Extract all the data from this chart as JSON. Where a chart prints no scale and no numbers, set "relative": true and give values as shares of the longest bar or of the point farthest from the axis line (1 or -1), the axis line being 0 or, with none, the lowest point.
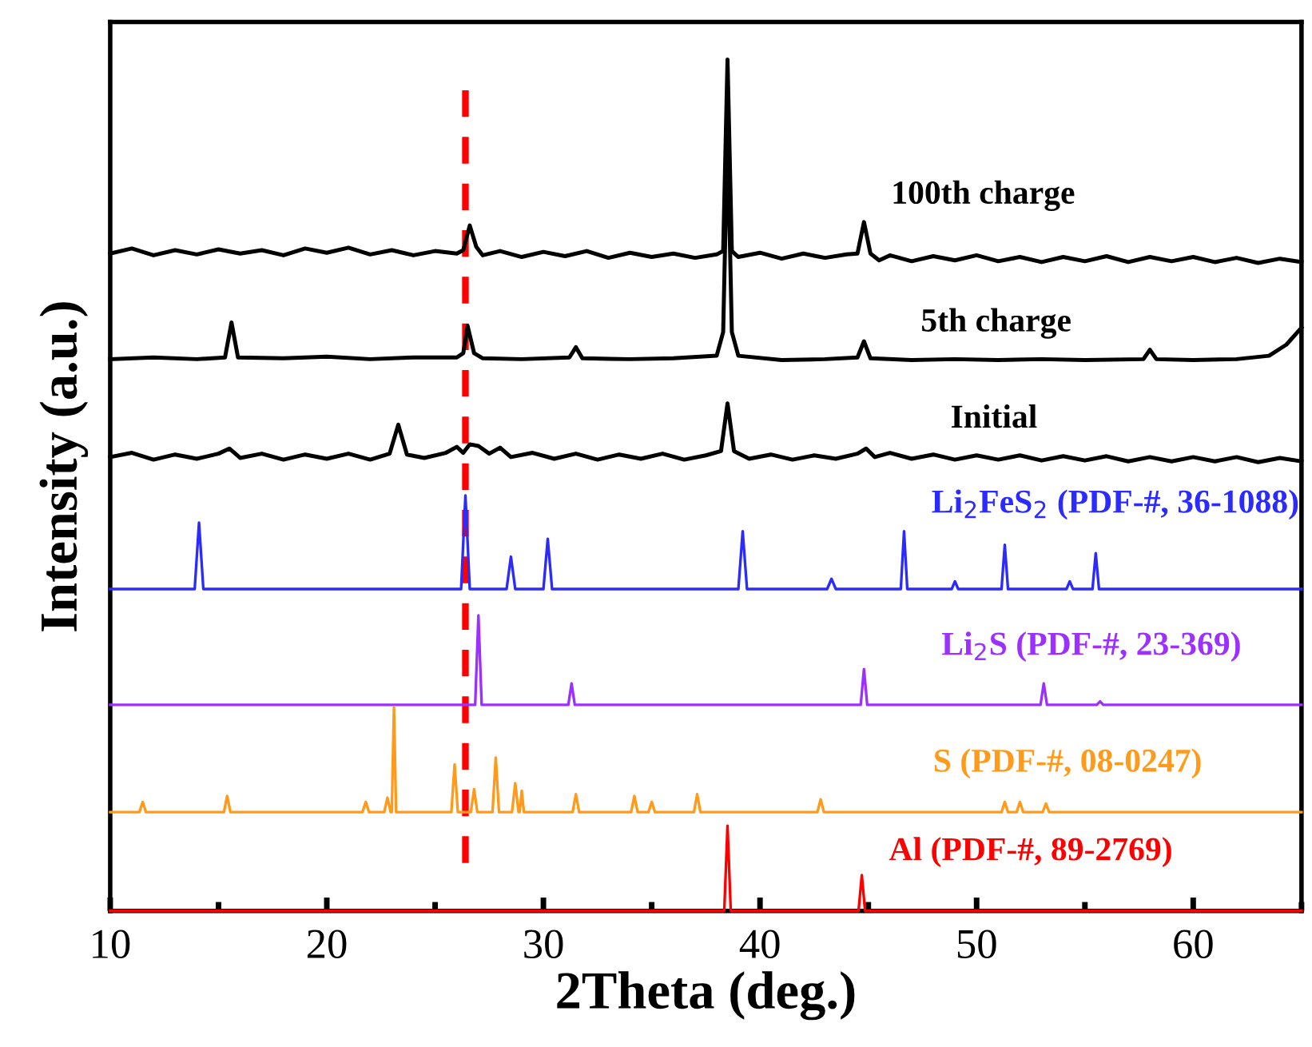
{
  "chart_data": {
    "type": "line",
    "relative": true,
    "xlabel": "2Theta (deg.)",
    "ylabel": "Intensity (a.u.)",
    "xlim": [
      10,
      65
    ],
    "xticks": [
      10,
      {
        "value": 15,
        "label": null
      },
      20,
      {
        "value": 25,
        "label": null
      },
      30,
      {
        "value": 35,
        "label": null
      },
      40,
      {
        "value": 45,
        "label": null
      },
      50,
      {
        "value": 55,
        "label": null
      },
      60,
      {
        "value": 65,
        "label": null
      }
    ],
    "tick_labels": "x",
    "grid": false,
    "legend": false,
    "ref_lines": [
      {
        "axis": "x",
        "value": 26.4,
        "label": null,
        "color": "#ff0000",
        "line_style": "dashed"
      }
    ],
    "series": [
      {
        "name": "100th charge",
        "color": "#000000",
        "x": [
          10,
          11,
          12,
          13,
          14,
          15,
          16,
          17,
          18,
          19,
          20,
          21,
          22,
          23,
          24,
          25,
          26,
          26.3,
          26.6,
          26.9,
          27.2,
          28,
          29,
          30,
          31,
          32,
          33,
          34,
          35,
          36,
          37,
          38,
          38.3,
          38.5,
          38.7,
          39,
          40,
          41,
          42,
          43,
          44,
          44.5,
          44.8,
          45.1,
          45.5,
          46,
          47,
          48,
          49,
          50,
          51,
          52,
          53,
          54,
          55,
          56,
          57,
          58,
          59,
          60,
          61,
          62,
          63,
          64,
          65
        ],
        "values": [
          0.772,
          0.778,
          0.77,
          0.776,
          0.771,
          0.777,
          0.772,
          0.776,
          0.77,
          0.778,
          0.773,
          0.779,
          0.771,
          0.776,
          0.77,
          0.775,
          0.772,
          0.776,
          0.805,
          0.78,
          0.77,
          0.775,
          0.768,
          0.774,
          0.769,
          0.775,
          0.767,
          0.773,
          0.768,
          0.772,
          0.767,
          0.771,
          0.775,
          1.0,
          0.775,
          0.768,
          0.773,
          0.766,
          0.772,
          0.767,
          0.771,
          0.772,
          0.809,
          0.772,
          0.764,
          0.77,
          0.763,
          0.769,
          0.764,
          0.77,
          0.763,
          0.768,
          0.762,
          0.768,
          0.763,
          0.769,
          0.762,
          0.768,
          0.763,
          0.768,
          0.762,
          0.767,
          0.761,
          0.766,
          0.762
        ]
      },
      {
        "name": "5th charge",
        "color": "#000000",
        "x": [
          10,
          12,
          14,
          15.3,
          15.6,
          15.9,
          18,
          20,
          22,
          24,
          26,
          26.3,
          26.5,
          26.8,
          27.2,
          29,
          31.2,
          31.5,
          31.8,
          34,
          36,
          38,
          38.3,
          38.5,
          38.7,
          39,
          41,
          43,
          44.5,
          44.8,
          45.1,
          47,
          49,
          51,
          53,
          55,
          57.7,
          58,
          58.3,
          60,
          62,
          63.5,
          64.3,
          65
        ],
        "values": [
          0.648,
          0.65,
          0.648,
          0.65,
          0.691,
          0.65,
          0.649,
          0.651,
          0.648,
          0.65,
          0.65,
          0.655,
          0.687,
          0.655,
          0.649,
          0.648,
          0.65,
          0.662,
          0.649,
          0.648,
          0.649,
          0.652,
          0.68,
          0.913,
          0.68,
          0.652,
          0.647,
          0.648,
          0.65,
          0.669,
          0.649,
          0.647,
          0.648,
          0.647,
          0.648,
          0.647,
          0.648,
          0.659,
          0.648,
          0.647,
          0.648,
          0.652,
          0.665,
          0.685
        ]
      },
      {
        "name": "Initial",
        "color": "#000000",
        "x": [
          10,
          11,
          12,
          13,
          14,
          15,
          15.5,
          16,
          17,
          18,
          19,
          20,
          21,
          22,
          22.9,
          23.3,
          23.7,
          24.5,
          25.5,
          26,
          26.3,
          26.6,
          27.0,
          27.5,
          28,
          28.5,
          29.5,
          30.5,
          31.5,
          32.5,
          33.5,
          34.5,
          35.5,
          36.5,
          37.5,
          38.2,
          38.5,
          38.8,
          39.5,
          40.5,
          41.5,
          42.5,
          43.5,
          44.5,
          44.9,
          45.3,
          46,
          47,
          48,
          49,
          50,
          51,
          52,
          53,
          54,
          55,
          56,
          57,
          58,
          59,
          60,
          61,
          62,
          63,
          64,
          65
        ],
        "values": [
          0.533,
          0.538,
          0.53,
          0.536,
          0.531,
          0.537,
          0.543,
          0.532,
          0.537,
          0.53,
          0.536,
          0.531,
          0.537,
          0.53,
          0.537,
          0.571,
          0.536,
          0.532,
          0.538,
          0.545,
          0.538,
          0.548,
          0.546,
          0.537,
          0.544,
          0.533,
          0.538,
          0.531,
          0.537,
          0.53,
          0.536,
          0.531,
          0.537,
          0.53,
          0.535,
          0.54,
          0.596,
          0.54,
          0.531,
          0.536,
          0.53,
          0.535,
          0.531,
          0.537,
          0.543,
          0.533,
          0.538,
          0.531,
          0.536,
          0.53,
          0.535,
          0.53,
          0.535,
          0.529,
          0.534,
          0.529,
          0.534,
          0.528,
          0.533,
          0.528,
          0.533,
          0.528,
          0.533,
          0.527,
          0.532,
          0.528
        ]
      },
      {
        "name": "Li$_{2}$FeS$_{2}$ (PDF-#, 36-1088)",
        "color": "#2b2bff",
        "x": [
          10,
          13.9,
          14.1,
          14.3,
          26.2,
          26.4,
          26.6,
          28.3,
          28.5,
          28.7,
          30.0,
          30.2,
          30.4,
          39.0,
          39.2,
          39.4,
          43.1,
          43.3,
          43.5,
          46.5,
          46.65,
          46.8,
          48.85,
          49.0,
          49.15,
          51.15,
          51.3,
          51.45,
          54.15,
          54.3,
          54.45,
          55.35,
          55.5,
          55.65,
          65
        ],
        "values": [
          0.378,
          0.378,
          0.456,
          0.378,
          0.378,
          0.488,
          0.378,
          0.378,
          0.416,
          0.378,
          0.378,
          0.437,
          0.378,
          0.378,
          0.446,
          0.378,
          0.378,
          0.39,
          0.378,
          0.378,
          0.446,
          0.378,
          0.378,
          0.387,
          0.378,
          0.378,
          0.43,
          0.378,
          0.378,
          0.387,
          0.378,
          0.378,
          0.42,
          0.378,
          0.378
        ]
      },
      {
        "name": "Li$_{2}$S (PDF-#, 23-369)",
        "color": "#9b30ff",
        "x": [
          10,
          26.85,
          27.0,
          27.15,
          31.15,
          31.3,
          31.45,
          44.65,
          44.8,
          44.95,
          52.95,
          53.1,
          53.25,
          55.55,
          55.7,
          55.85,
          65
        ],
        "values": [
          0.242,
          0.242,
          0.347,
          0.242,
          0.242,
          0.267,
          0.242,
          0.242,
          0.284,
          0.242,
          0.242,
          0.267,
          0.242,
          0.242,
          0.246,
          0.242,
          0.242
        ]
      },
      {
        "name": "S (PDF-#, 08-0247)",
        "color": "#ff9a1a",
        "x": [
          10,
          11.35,
          11.5,
          11.65,
          15.25,
          15.4,
          15.55,
          21.65,
          21.8,
          21.95,
          22.65,
          22.8,
          22.95,
          23.0,
          23.1,
          23.2,
          25.75,
          25.9,
          26.05,
          26.65,
          26.8,
          26.95,
          27.65,
          27.8,
          27.95,
          28.55,
          28.7,
          28.85,
          28.9,
          29.0,
          29.1,
          31.35,
          31.5,
          31.65,
          34.05,
          34.2,
          34.35,
          34.85,
          35.0,
          35.15,
          36.95,
          37.1,
          37.25,
          42.65,
          42.8,
          42.95,
          51.15,
          51.3,
          51.45,
          51.85,
          52.0,
          52.15,
          53.05,
          53.2,
          53.35,
          65
        ],
        "values": [
          0.116,
          0.116,
          0.128,
          0.116,
          0.116,
          0.135,
          0.116,
          0.116,
          0.128,
          0.116,
          0.116,
          0.133,
          0.116,
          0.116,
          0.239,
          0.116,
          0.116,
          0.172,
          0.116,
          0.116,
          0.143,
          0.116,
          0.116,
          0.18,
          0.116,
          0.116,
          0.15,
          0.116,
          0.116,
          0.141,
          0.116,
          0.116,
          0.137,
          0.116,
          0.116,
          0.135,
          0.116,
          0.116,
          0.128,
          0.116,
          0.116,
          0.137,
          0.116,
          0.116,
          0.131,
          0.116,
          0.116,
          0.128,
          0.116,
          0.116,
          0.128,
          0.116,
          0.116,
          0.126,
          0.116,
          0.116
        ]
      },
      {
        "name": "Al (PDF-#, 89-2769)",
        "color": "#ff0000",
        "x": [
          10,
          38.35,
          38.5,
          38.65,
          44.55,
          44.7,
          44.85,
          65
        ],
        "values": [
          0,
          0,
          0.1,
          0,
          0,
          0.042,
          0,
          0
        ]
      }
    ]
  }
}
